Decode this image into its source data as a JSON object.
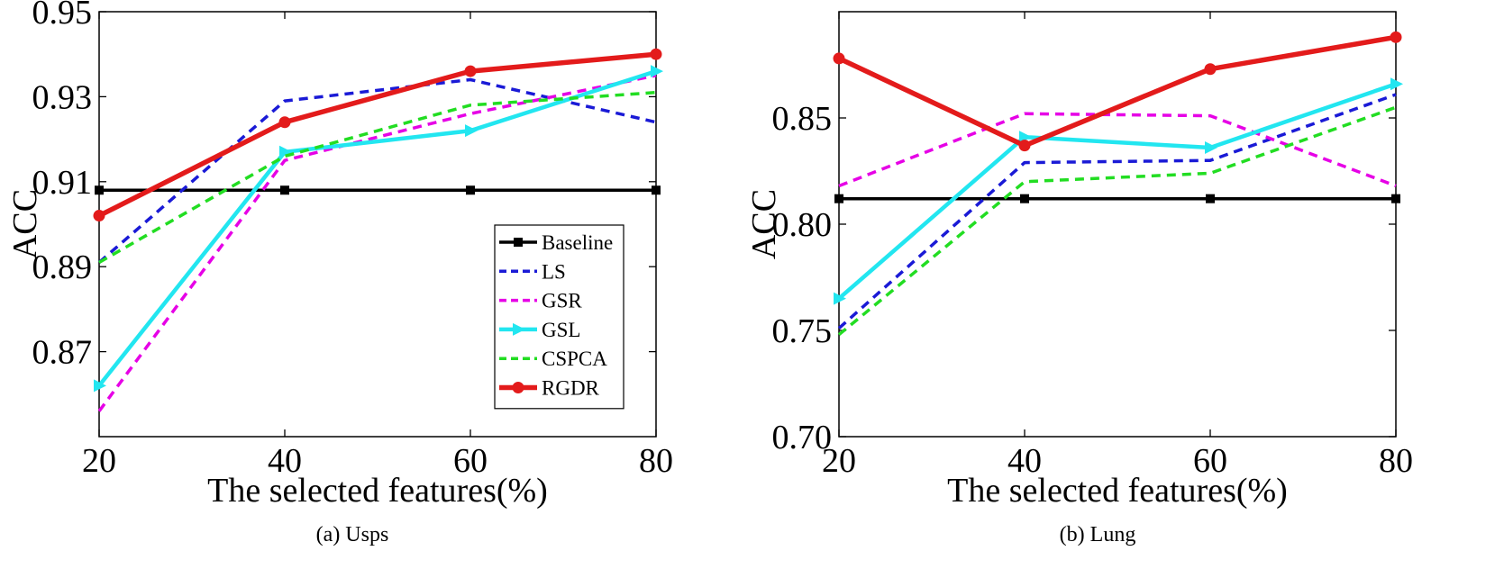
{
  "chart_data": [
    {
      "type": "line",
      "caption": "(a)  Usps",
      "xlabel": "The selected features(%)",
      "ylabel": "ACC",
      "x": [
        20,
        40,
        60,
        80
      ],
      "xlim": [
        20,
        80
      ],
      "ylim": [
        0.85,
        0.95
      ],
      "xticks": [
        "20",
        "40",
        "60",
        "80"
      ],
      "yticks": [
        0.87,
        0.89,
        0.91,
        0.93,
        0.95
      ],
      "ytick_labels": [
        "0.87",
        "0.89",
        "0.91",
        "0.93",
        "0.95"
      ],
      "legend": "inside-bottom-right",
      "series": [
        {
          "name": "Baseline",
          "values": [
            0.908,
            0.908,
            0.908,
            0.908
          ],
          "color": "#000000",
          "dash": "solid",
          "marker": "square",
          "width": "medium"
        },
        {
          "name": "LS",
          "values": [
            0.891,
            0.929,
            0.934,
            0.924
          ],
          "color": "#1a1ad6",
          "dash": "dashed",
          "marker": "none",
          "width": "thin"
        },
        {
          "name": "GSR",
          "values": [
            0.856,
            0.915,
            0.926,
            0.935
          ],
          "color": "#e600e6",
          "dash": "dashed",
          "marker": "none",
          "width": "thin"
        },
        {
          "name": "GSL",
          "values": [
            0.862,
            0.917,
            0.922,
            0.936
          ],
          "color": "#22e6f0",
          "dash": "solid",
          "marker": "triangle-right",
          "width": "thick"
        },
        {
          "name": "CSPCA",
          "values": [
            0.891,
            0.916,
            0.928,
            0.931
          ],
          "color": "#22dd22",
          "dash": "dashed",
          "marker": "none",
          "width": "thin"
        },
        {
          "name": "RGDR",
          "values": [
            0.902,
            0.924,
            0.936,
            0.94
          ],
          "color": "#e31b1b",
          "dash": "solid",
          "marker": "circle",
          "width": "thickest"
        }
      ]
    },
    {
      "type": "line",
      "caption": "(b)  Lung",
      "xlabel": "The selected features(%)",
      "ylabel": "ACC",
      "x": [
        20,
        40,
        60,
        80
      ],
      "xlim": [
        20,
        80
      ],
      "ylim": [
        0.7,
        0.9
      ],
      "xticks": [
        "20",
        "40",
        "60",
        "80"
      ],
      "yticks": [
        0.7,
        0.75,
        0.8,
        0.85
      ],
      "ytick_labels": [
        "0.70",
        "0.75",
        "0.80",
        "0.85"
      ],
      "legend": "none",
      "series": [
        {
          "name": "Baseline",
          "values": [
            0.812,
            0.812,
            0.812,
            0.812
          ],
          "color": "#000000",
          "dash": "solid",
          "marker": "square",
          "width": "medium"
        },
        {
          "name": "LS",
          "values": [
            0.751,
            0.829,
            0.83,
            0.861
          ],
          "color": "#1a1ad6",
          "dash": "dashed",
          "marker": "none",
          "width": "thin"
        },
        {
          "name": "GSR",
          "values": [
            0.818,
            0.852,
            0.851,
            0.818
          ],
          "color": "#e600e6",
          "dash": "dashed",
          "marker": "none",
          "width": "thin"
        },
        {
          "name": "GSL",
          "values": [
            0.765,
            0.841,
            0.836,
            0.866
          ],
          "color": "#22e6f0",
          "dash": "solid",
          "marker": "triangle-right",
          "width": "thick"
        },
        {
          "name": "CSPCA",
          "values": [
            0.748,
            0.82,
            0.824,
            0.855
          ],
          "color": "#22dd22",
          "dash": "dashed",
          "marker": "none",
          "width": "thin"
        },
        {
          "name": "RGDR",
          "values": [
            0.878,
            0.837,
            0.873,
            0.888
          ],
          "color": "#e31b1b",
          "dash": "solid",
          "marker": "circle",
          "width": "thickest"
        }
      ]
    }
  ]
}
